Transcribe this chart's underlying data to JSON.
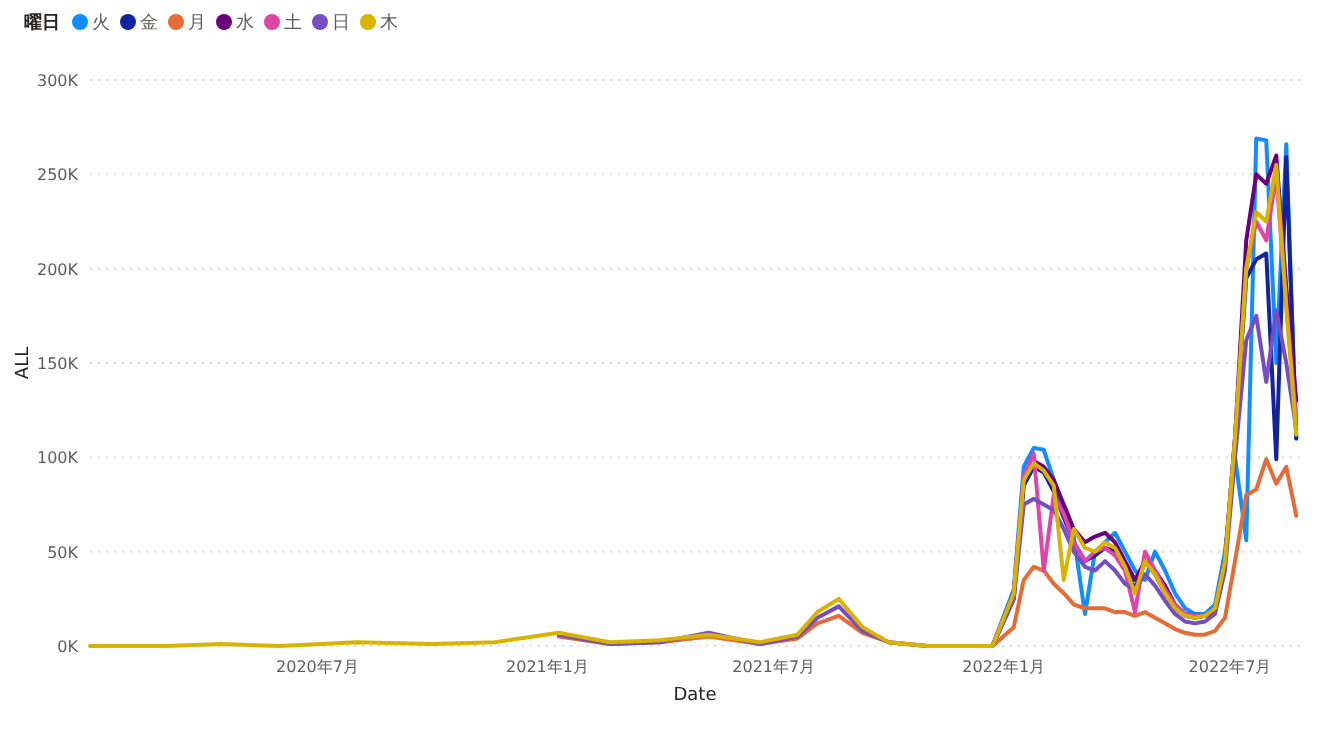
{
  "chart_data": {
    "type": "line",
    "xlabel": "Date",
    "ylabel": "ALL",
    "legend_title": "曜日",
    "legend": "top left",
    "grid": "y",
    "line_style": "solid",
    "xlim": [
      "2020-01-01",
      "2022-08-26"
    ],
    "xticks": [
      {
        "value": "2020-07-01",
        "label": "2020年7月"
      },
      {
        "value": "2021-01-01",
        "label": "2021年1月"
      },
      {
        "value": "2021-07-01",
        "label": "2021年7月"
      },
      {
        "value": "2022-01-01",
        "label": "2022年1月"
      },
      {
        "value": "2022-07-01",
        "label": "2022年7月"
      }
    ],
    "ylim": [
      0,
      300000
    ],
    "yticks": [
      {
        "value": 0,
        "label": "0K"
      },
      {
        "value": 50000,
        "label": "50K"
      },
      {
        "value": 100000,
        "label": "100K"
      },
      {
        "value": 150000,
        "label": "150K"
      },
      {
        "value": 200000,
        "label": "200K"
      },
      {
        "value": 250000,
        "label": "250K"
      },
      {
        "value": 300000,
        "label": "300K"
      }
    ],
    "x": [
      "2020-01-01",
      "2020-03-01",
      "2020-04-15",
      "2020-06-01",
      "2020-08-01",
      "2020-10-01",
      "2020-11-20",
      "2021-01-10",
      "2021-02-20",
      "2021-04-01",
      "2021-05-10",
      "2021-06-20",
      "2021-07-20",
      "2021-08-05",
      "2021-08-22",
      "2021-09-10",
      "2021-10-01",
      "2021-11-01",
      "2021-12-23",
      "2022-01-09",
      "2022-01-17",
      "2022-01-25",
      "2022-02-02",
      "2022-02-10",
      "2022-02-18",
      "2022-02-26",
      "2022-03-07",
      "2022-03-15",
      "2022-03-23",
      "2022-03-31",
      "2022-04-08",
      "2022-04-16",
      "2022-04-24",
      "2022-05-02",
      "2022-05-10",
      "2022-05-18",
      "2022-05-26",
      "2022-06-03",
      "2022-06-11",
      "2022-06-19",
      "2022-06-27",
      "2022-07-05",
      "2022-07-14",
      "2022-07-22",
      "2022-07-30",
      "2022-08-07",
      "2022-08-15",
      "2022-08-23"
    ],
    "series": [
      {
        "name": "火",
        "color": "#118dff",
        "values": [
          null,
          null,
          null,
          null,
          null,
          null,
          null,
          null,
          null,
          null,
          null,
          null,
          null,
          null,
          null,
          null,
          null,
          0,
          0,
          30000,
          95000,
          105000,
          104000,
          88000,
          70000,
          58000,
          17000,
          50000,
          55000,
          60000,
          50000,
          40000,
          35000,
          50000,
          40000,
          28000,
          20000,
          17000,
          17000,
          22000,
          50000,
          100000,
          56000,
          269000,
          268000,
          150000,
          266000,
          110000
        ]
      },
      {
        "name": "金",
        "color": "#12239e",
        "values": [
          null,
          null,
          null,
          null,
          null,
          null,
          null,
          null,
          null,
          null,
          null,
          null,
          null,
          null,
          null,
          null,
          null,
          0,
          0,
          25000,
          85000,
          95000,
          92000,
          82000,
          68000,
          55000,
          45000,
          48000,
          52000,
          50000,
          42000,
          30000,
          45000,
          38000,
          28000,
          20000,
          16000,
          15000,
          16000,
          20000,
          45000,
          110000,
          195000,
          205000,
          208000,
          99000,
          259000,
          110000
        ]
      },
      {
        "name": "月",
        "color": "#e66c37",
        "values": [
          null,
          null,
          null,
          null,
          null,
          null,
          null,
          5000,
          1000,
          2000,
          5000,
          1000,
          4000,
          12000,
          16000,
          7000,
          2000,
          0,
          0,
          10000,
          35000,
          42000,
          40000,
          33000,
          28000,
          22000,
          20000,
          20000,
          20000,
          18000,
          18000,
          16000,
          18000,
          15000,
          12000,
          9000,
          7000,
          6000,
          6000,
          8000,
          15000,
          45000,
          80000,
          83000,
          99000,
          86000,
          95000,
          69000
        ]
      },
      {
        "name": "水",
        "color": "#6b007b",
        "values": [
          null,
          null,
          null,
          null,
          null,
          null,
          null,
          null,
          null,
          null,
          null,
          null,
          null,
          null,
          null,
          null,
          null,
          0,
          0,
          28000,
          88000,
          98000,
          95000,
          88000,
          75000,
          62000,
          55000,
          58000,
          60000,
          55000,
          45000,
          35000,
          45000,
          40000,
          32000,
          22000,
          17000,
          16000,
          16000,
          18000,
          45000,
          110000,
          215000,
          250000,
          245000,
          260000,
          190000,
          130000
        ]
      },
      {
        "name": "土",
        "color": "#e044a7",
        "values": [
          null,
          null,
          null,
          null,
          null,
          null,
          null,
          null,
          null,
          null,
          null,
          null,
          null,
          null,
          null,
          null,
          null,
          null,
          null,
          28000,
          90000,
          102000,
          40000,
          80000,
          70000,
          55000,
          45000,
          50000,
          52000,
          48000,
          40000,
          18000,
          50000,
          40000,
          30000,
          22000,
          17000,
          16000,
          16000,
          20000,
          45000,
          110000,
          200000,
          225000,
          215000,
          250000,
          180000,
          120000
        ]
      },
      {
        "name": "日",
        "color": "#744ec2",
        "values": [
          null,
          null,
          null,
          null,
          null,
          null,
          null,
          6000,
          1000,
          2000,
          7000,
          1000,
          5000,
          15000,
          21000,
          8000,
          2000,
          0,
          0,
          25000,
          75000,
          78000,
          75000,
          72000,
          62000,
          50000,
          42000,
          40000,
          45000,
          40000,
          33000,
          30000,
          38000,
          32000,
          24000,
          17000,
          13000,
          12000,
          13000,
          17000,
          40000,
          100000,
          162000,
          175000,
          140000,
          178000,
          150000,
          115000
        ]
      },
      {
        "name": "木",
        "color": "#d9b300",
        "values": [
          0,
          0,
          1000,
          0,
          2000,
          1000,
          2000,
          7000,
          2000,
          3000,
          6000,
          2000,
          6000,
          18000,
          25000,
          10000,
          2000,
          0,
          0,
          28000,
          88000,
          97000,
          93000,
          85000,
          35000,
          62000,
          52000,
          50000,
          55000,
          52000,
          42000,
          28000,
          45000,
          38000,
          28000,
          20000,
          16000,
          15000,
          16000,
          20000,
          45000,
          110000,
          200000,
          230000,
          225000,
          255000,
          180000,
          112000
        ]
      }
    ]
  }
}
